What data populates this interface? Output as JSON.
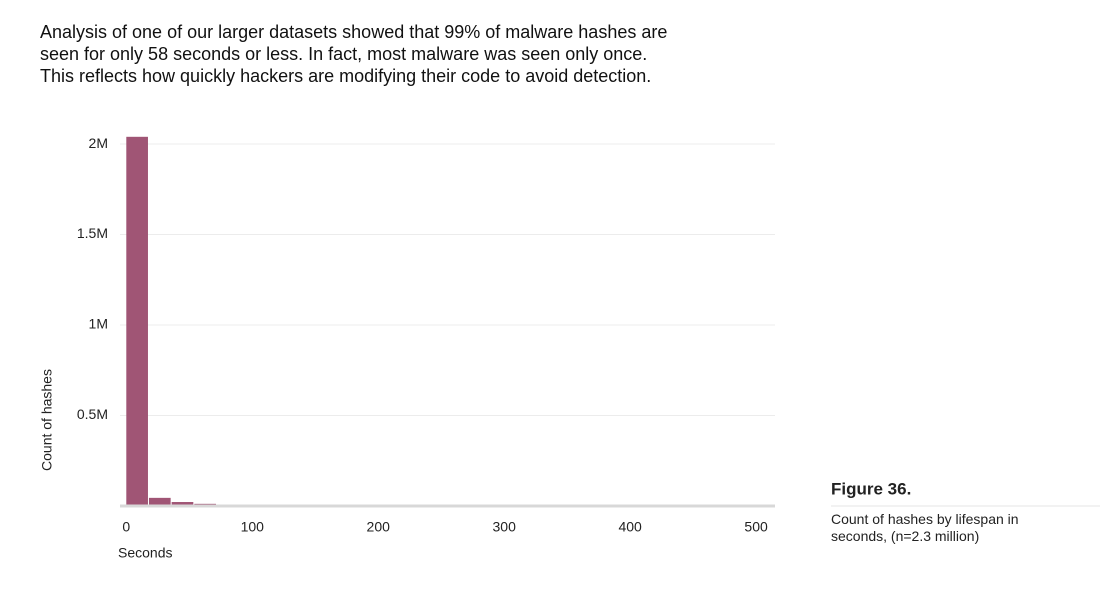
{
  "intro": {
    "lines": [
      "Analysis of one of our larger datasets showed that 99% of malware hashes are",
      "seen for only 58 seconds or less. In fact, most malware was seen only once.",
      "This reflects how quickly hackers are modifying their code to avoid detection."
    ]
  },
  "figure": {
    "label": "Figure 36.",
    "caption": "Count of hashes by lifespan in seconds, (n=2.3 million)"
  },
  "chart_data": {
    "type": "histogram",
    "ylabel": "Count of hashes",
    "xlabel": "Seconds",
    "bins": [
      0,
      18,
      36,
      54,
      72,
      90,
      108,
      126,
      144,
      162,
      180,
      198,
      216,
      234,
      252,
      270,
      288
    ],
    "values": [
      2040000,
      45000,
      22000,
      12000,
      8000,
      5000,
      4000,
      3000,
      2500,
      2000,
      1500,
      1200,
      1000,
      800,
      600,
      500
    ],
    "color": "#a05575",
    "xlim": [
      -5,
      515
    ],
    "xticks": [
      0,
      100,
      200,
      300,
      400,
      500
    ],
    "ylim": [
      0,
      2050000
    ],
    "yticks": [
      {
        "value": 500000,
        "label": "0.5M"
      },
      {
        "value": 1000000,
        "label": "1M"
      },
      {
        "value": 1500000,
        "label": "1.5M"
      },
      {
        "value": 2000000,
        "label": "2M"
      }
    ],
    "grid": true
  }
}
